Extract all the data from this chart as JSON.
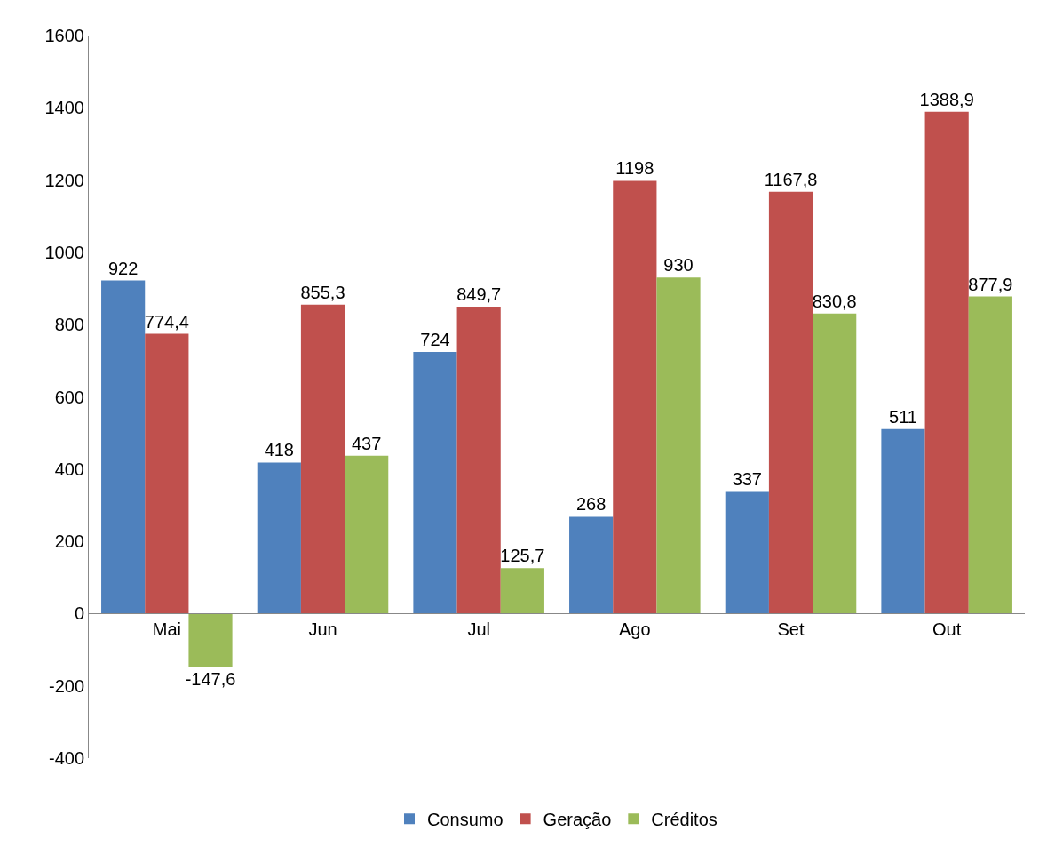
{
  "chart_data": {
    "type": "bar",
    "categories": [
      "Mai",
      "Jun",
      "Jul",
      "Ago",
      "Set",
      "Out"
    ],
    "series": [
      {
        "name": "Consumo",
        "color": "#4f81bd",
        "values": [
          922,
          418,
          724,
          268,
          337,
          511
        ],
        "value_labels": [
          "922",
          "418",
          "724",
          "268",
          "337",
          "511"
        ]
      },
      {
        "name": "Geração",
        "color": "#c0504d",
        "values": [
          774.4,
          855.3,
          849.7,
          1198,
          1167.8,
          1388.9
        ],
        "value_labels": [
          "774,4",
          "855,3",
          "849,7",
          "1198",
          "1167,8",
          "1388,9"
        ]
      },
      {
        "name": "Créditos",
        "color": "#9bbb59",
        "values": [
          -147.6,
          437,
          125.7,
          930,
          830.8,
          877.9
        ],
        "value_labels": [
          "-147,6",
          "437",
          "125,7",
          "930",
          "830,8",
          "877,9"
        ]
      }
    ],
    "ylim": [
      -400,
      1600
    ],
    "yticks": [
      -400,
      -200,
      0,
      200,
      400,
      600,
      800,
      1000,
      1200,
      1400,
      1600
    ],
    "legend": "bottom"
  }
}
